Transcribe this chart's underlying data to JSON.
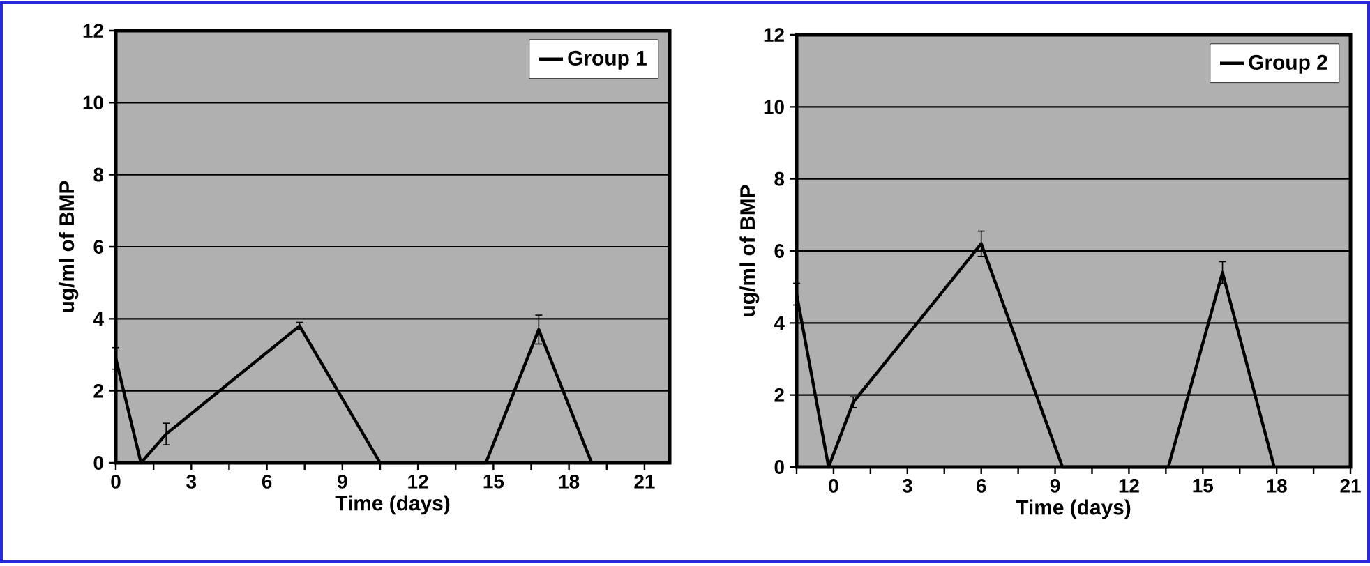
{
  "chart_data": [
    {
      "type": "line",
      "xlabel": "Time (days)",
      "ylabel": "ug/ml of BMP",
      "x": [
        0,
        1,
        2,
        7.3,
        10.5,
        14.7,
        16.8,
        18.9
      ],
      "series": [
        {
          "name": "Group 1",
          "color": "#000000",
          "values": [
            2.9,
            0,
            0.8,
            3.8,
            0,
            0,
            3.7,
            0
          ],
          "errors": [
            0.3,
            null,
            0.3,
            0.1,
            null,
            null,
            0.4,
            null
          ]
        }
      ],
      "xlim": [
        0,
        22
      ],
      "xticks": [
        0,
        {
          "value": 1.5,
          "label": null
        },
        3,
        {
          "value": 4.5,
          "label": null
        },
        6,
        {
          "value": 7.5,
          "label": null
        },
        9,
        {
          "value": 10.5,
          "label": null
        },
        12,
        {
          "value": 13.5,
          "label": null
        },
        15,
        {
          "value": 16.5,
          "label": null
        },
        18,
        {
          "value": 19.5,
          "label": null
        },
        21
      ],
      "ylim": [
        0,
        12
      ],
      "yticks": [
        0,
        2,
        4,
        6,
        8,
        10,
        12
      ],
      "grid": "y",
      "legend": "top right"
    },
    {
      "type": "line",
      "xlabel": "Time (days)",
      "ylabel": "ug/ml of BMP",
      "x": [
        -1.5,
        -0.2,
        0.8,
        6.0,
        9.3,
        13.6,
        15.8,
        17.9
      ],
      "series": [
        {
          "name": "Group 2",
          "color": "#000000",
          "values": [
            4.8,
            0,
            1.8,
            6.2,
            0,
            0,
            5.4,
            0
          ],
          "errors": [
            0.3,
            null,
            0.15,
            0.35,
            null,
            null,
            0.3,
            null
          ]
        }
      ],
      "xlim": [
        -1.5,
        21
      ],
      "xticks": [
        {
          "value": -1.5,
          "label": null
        },
        0,
        {
          "value": 1.5,
          "label": null
        },
        3,
        {
          "value": 4.5,
          "label": null
        },
        6,
        {
          "value": 7.5,
          "label": null
        },
        9,
        {
          "value": 10.5,
          "label": null
        },
        12,
        {
          "value": 13.5,
          "label": null
        },
        15,
        {
          "value": 16.5,
          "label": null
        },
        18,
        {
          "value": 19.5,
          "label": null
        },
        21
      ],
      "ylim": [
        0,
        12
      ],
      "yticks": [
        0,
        2,
        4,
        6,
        8,
        10,
        12
      ],
      "grid": "y",
      "legend": "top right"
    }
  ]
}
